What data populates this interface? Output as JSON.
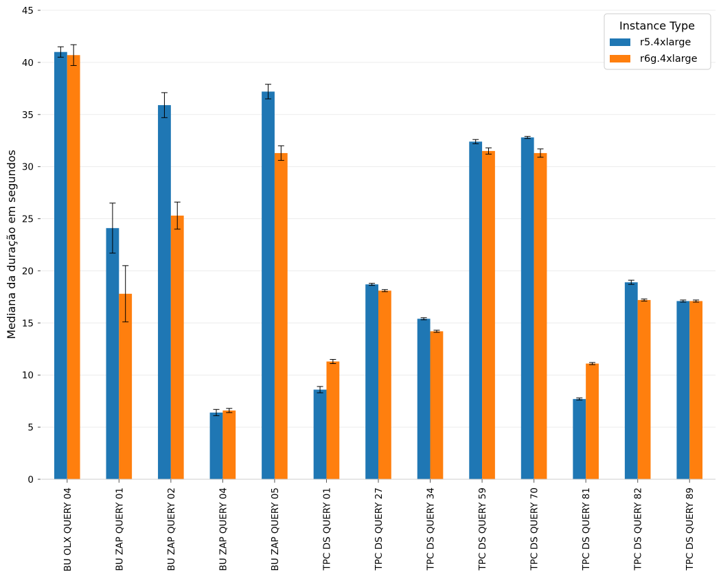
{
  "chart_data": {
    "type": "bar",
    "title": "",
    "xlabel": "",
    "ylabel": "Mediana da duração em segundos",
    "ylim": [
      0,
      45
    ],
    "yticks": [
      "0",
      "5",
      "10",
      "15",
      "20",
      "25",
      "30",
      "35",
      "40",
      "45"
    ],
    "grid": "horizontal",
    "legend_title": "Instance Type",
    "legend_position": "top-right",
    "categories": [
      "BU OLX QUERY 04",
      "BU ZAP QUERY 01",
      "BU ZAP QUERY 02",
      "BU ZAP QUERY 04",
      "BU ZAP QUERY 05",
      "TPC DS QUERY 01",
      "TPC DS QUERY 27",
      "TPC DS QUERY 34",
      "TPC DS QUERY 59",
      "TPC DS QUERY 70",
      "TPC DS QUERY 81",
      "TPC DS QUERY 82",
      "TPC DS QUERY 89"
    ],
    "series": [
      {
        "name": "r5.4xlarge",
        "color": "#1f77b4",
        "values": [
          41.0,
          24.1,
          35.9,
          6.4,
          37.2,
          8.6,
          18.7,
          15.4,
          32.4,
          32.8,
          7.7,
          18.9,
          17.1
        ],
        "errors": [
          0.5,
          2.4,
          1.2,
          0.3,
          0.7,
          0.3,
          0.1,
          0.1,
          0.2,
          0.1,
          0.1,
          0.2,
          0.1
        ]
      },
      {
        "name": "r6g.4xlarge",
        "color": "#ff7f0e",
        "values": [
          40.7,
          17.8,
          25.3,
          6.6,
          31.3,
          11.3,
          18.1,
          14.2,
          31.5,
          31.3,
          11.1,
          17.2,
          17.1
        ],
        "errors": [
          1.0,
          2.7,
          1.3,
          0.2,
          0.7,
          0.2,
          0.1,
          0.1,
          0.3,
          0.4,
          0.1,
          0.1,
          0.1
        ]
      }
    ]
  }
}
